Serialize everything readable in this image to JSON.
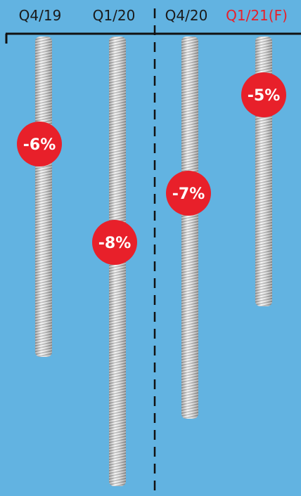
{
  "chart_data": {
    "type": "bar",
    "orientation": "vertical-down",
    "categories": [
      "Q4/19",
      "Q1/20",
      "Q4/20",
      "Q1/21(F)"
    ],
    "values": [
      -6,
      -8,
      -7,
      -5
    ],
    "bar_depths": [
      -57,
      -80,
      -68,
      -48
    ],
    "data_labels": [
      "-6%",
      "-8%",
      "-7%",
      "-5%"
    ],
    "forecast_index": 3,
    "divider_after_index": 1,
    "colors": {
      "background": "#62b3e1",
      "axis": "#111111",
      "label": "#1a1a1a",
      "forecast_label": "#e8202a",
      "badge": "#e8202a",
      "badge_text": "#ffffff",
      "bar_light": "#f2f2f2",
      "bar_dark": "#9a9a9a"
    }
  }
}
